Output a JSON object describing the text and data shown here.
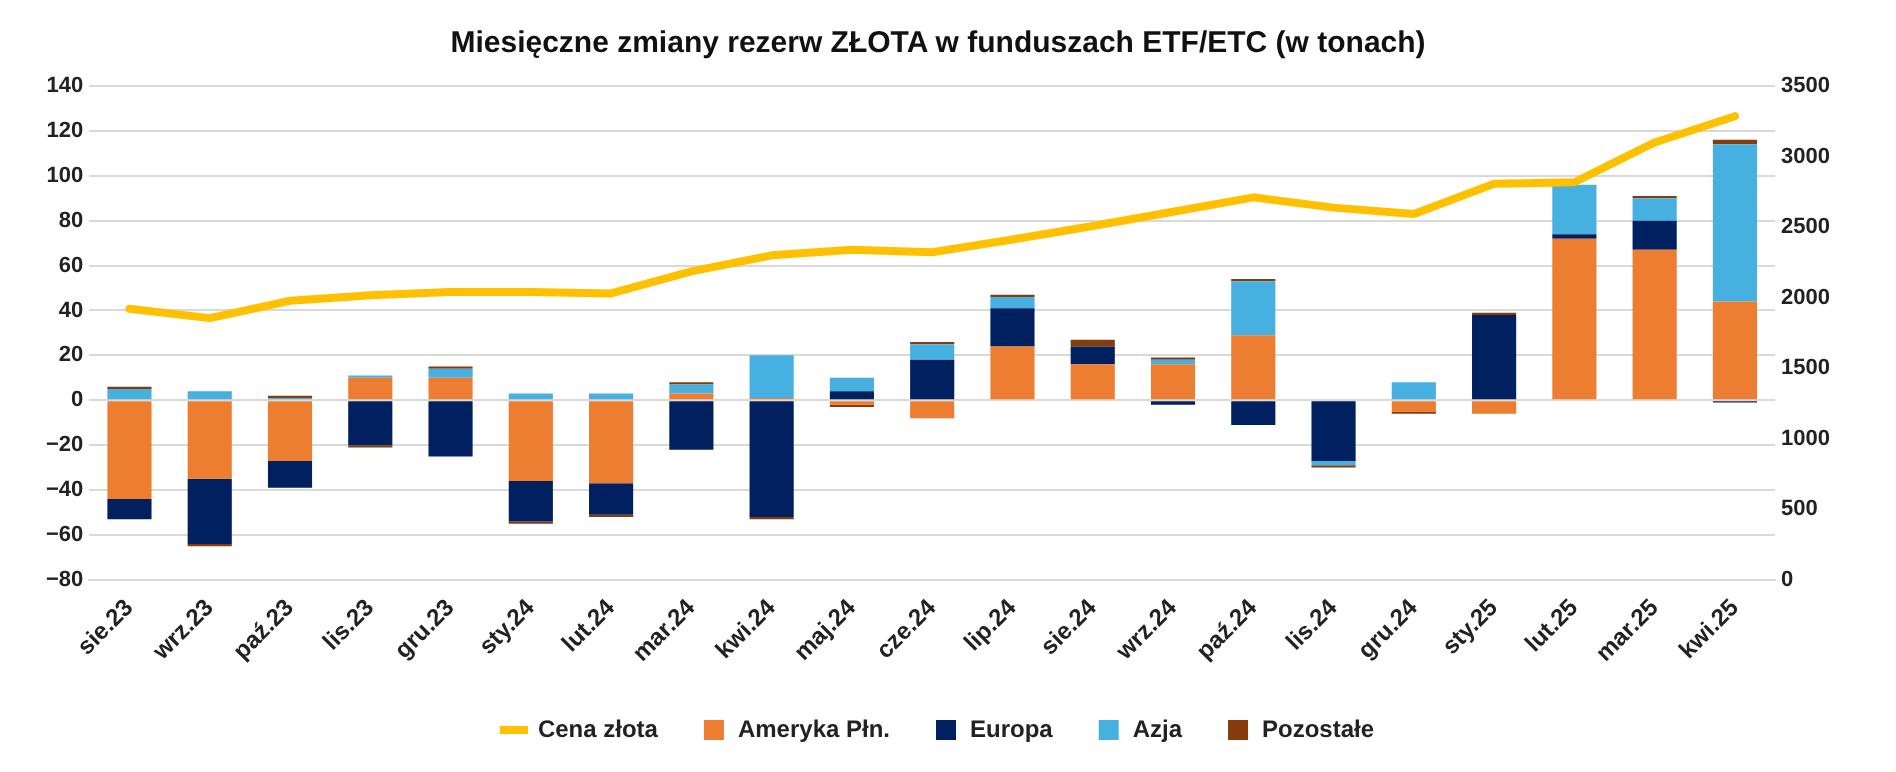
{
  "chart_data": {
    "type": "bar",
    "title": "Miesięczne zmiany rezerw ZŁOTA w funduszach ETF/ETC (w tonach)",
    "categories": [
      "sie.23",
      "wrz.23",
      "paź.23",
      "lis.23",
      "gru.23",
      "sty.24",
      "lut.24",
      "mar.24",
      "kwi.24",
      "maj.24",
      "cze.24",
      "lip.24",
      "sie.24",
      "wrz.24",
      "paź.24",
      "lis.24",
      "gru.24",
      "sty.25",
      "lut.25",
      "mar.25",
      "kwi.25"
    ],
    "stacked": true,
    "grid": "y",
    "legend": "bottom",
    "ylim": [
      -80,
      140
    ],
    "yticks": [
      -80,
      -60,
      -40,
      -20,
      0,
      20,
      40,
      60,
      80,
      100,
      120,
      140
    ],
    "y2lim": [
      0,
      3500
    ],
    "y2ticks": [
      0,
      500,
      1000,
      1500,
      2000,
      2500,
      3000,
      3500
    ],
    "series": [
      {
        "name": "Ameryka Płn.",
        "color": "#ed7d31",
        "values": [
          -44,
          -35,
          -27,
          10,
          10,
          -36,
          -37,
          3,
          1,
          -2,
          -8,
          24,
          16,
          16,
          29,
          0,
          -5,
          -6,
          72,
          67,
          44
        ]
      },
      {
        "name": "Europa",
        "color": "#002060",
        "values": [
          -9,
          -29,
          -12,
          -20,
          -25,
          -18,
          -14,
          -22,
          -52,
          4,
          18,
          17,
          8,
          -2,
          -11,
          -27,
          0,
          38,
          2,
          13,
          -1
        ]
      },
      {
        "name": "Azja",
        "color": "#46b1e1",
        "values": [
          5,
          4,
          1,
          1,
          4,
          3,
          3,
          4,
          19,
          6,
          7,
          5,
          0,
          2,
          24,
          -2,
          8,
          0,
          22,
          10,
          70
        ]
      },
      {
        "name": "Pozostałe",
        "color": "#843c0c",
        "values": [
          1,
          -1,
          1,
          -1,
          1,
          -1,
          -1,
          1,
          -1,
          -1,
          1,
          1,
          3,
          1,
          1,
          -1,
          -1,
          1,
          0,
          1,
          2
        ]
      },
      {
        "name": "Cena złota",
        "type": "line",
        "axis": "y2",
        "color": "#ffc000",
        "values": [
          1922,
          1855,
          1978,
          2017,
          2040,
          2040,
          2030,
          2186,
          2300,
          2339,
          2322,
          2412,
          2508,
          2609,
          2711,
          2638,
          2593,
          2807,
          2818,
          3100,
          3286
        ]
      }
    ]
  }
}
